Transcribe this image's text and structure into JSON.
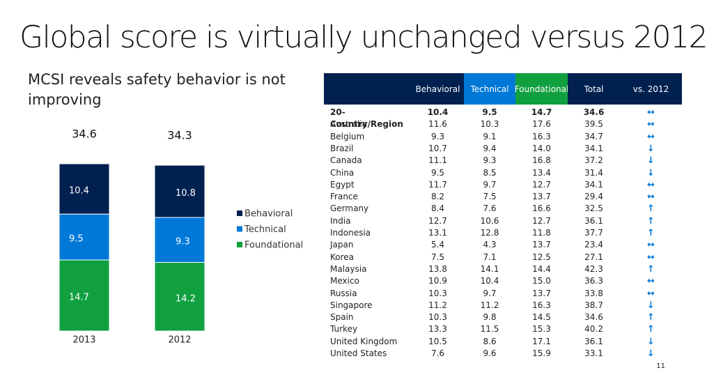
{
  "title": "Global score is virtually unchanged versus 2012",
  "subtitle": "MCSI reveals safety behavior is not improving",
  "page_number": "11",
  "chart_data": {
    "type": "stacked-bar",
    "categories": [
      "2013",
      "2012"
    ],
    "totals": [
      34.6,
      34.3
    ],
    "series": [
      {
        "name": "Behavioral",
        "color": "#002050",
        "values": [
          10.4,
          10.8
        ]
      },
      {
        "name": "Technical",
        "color": "#0078d7",
        "values": [
          9.5,
          9.3
        ]
      },
      {
        "name": "Foundational",
        "color": "#10a040",
        "values": [
          14.7,
          14.2
        ]
      }
    ]
  },
  "table": {
    "header": [
      "Behavioral",
      "Technical",
      "Foundational",
      "Total",
      "vs. 2012"
    ],
    "header_colors": [
      "#002050",
      "#0078d7",
      "#10a040",
      "#002050",
      "#002050"
    ],
    "rows": [
      [
        "20-Country/Region",
        "10.4",
        "9.5",
        "14.7",
        "34.6",
        "↔"
      ],
      [
        "Australia",
        "11.6",
        "10.3",
        "17.6",
        "39.5",
        "↔"
      ],
      [
        "Belgium",
        "9.3",
        "9.1",
        "16.3",
        "34.7",
        "↔"
      ],
      [
        "Brazil",
        "10.7",
        "9.4",
        "14.0",
        "34.1",
        "↓"
      ],
      [
        "Canada",
        "11.1",
        "9.3",
        "16.8",
        "37.2",
        "↓"
      ],
      [
        "China",
        "9.5",
        "8.5",
        "13.4",
        "31.4",
        "↓"
      ],
      [
        "Egypt",
        "11.7",
        "9.7",
        "12.7",
        "34.1",
        "↔"
      ],
      [
        "France",
        "8.2",
        "7.5",
        "13.7",
        "29.4",
        "↔"
      ],
      [
        "Germany",
        "8.4",
        "7.6",
        "16.6",
        "32.5",
        "↑"
      ],
      [
        "India",
        "12.7",
        "10.6",
        "12.7",
        "36.1",
        "↑"
      ],
      [
        "Indonesia",
        "13.1",
        "12.8",
        "11.8",
        "37.7",
        "↑"
      ],
      [
        "Japan",
        "5.4",
        "4.3",
        "13.7",
        "23.4",
        "↔"
      ],
      [
        "Korea",
        "7.5",
        "7.1",
        "12.5",
        "27.1",
        "↔"
      ],
      [
        "Malaysia",
        "13.8",
        "14.1",
        "14.4",
        "42.3",
        "↑"
      ],
      [
        "Mexico",
        "10.9",
        "10.4",
        "15.0",
        "36.3",
        "↔"
      ],
      [
        "Russia",
        "10.3",
        "9.7",
        "13.7",
        "33.8",
        "↔"
      ],
      [
        "Singapore",
        "11.2",
        "11.2",
        "16.3",
        "38.7",
        "↓"
      ],
      [
        "Spain",
        "10.3",
        "9.8",
        "14.5",
        "34.6",
        "↑"
      ],
      [
        "Turkey",
        "13.3",
        "11.5",
        "15.3",
        "40.2",
        "↑"
      ],
      [
        "United Kingdom",
        "10.5",
        "8.6",
        "17.1",
        "36.1",
        "↓"
      ],
      [
        "United States",
        "7.6",
        "9.6",
        "15.9",
        "33.1",
        "↓"
      ]
    ]
  }
}
